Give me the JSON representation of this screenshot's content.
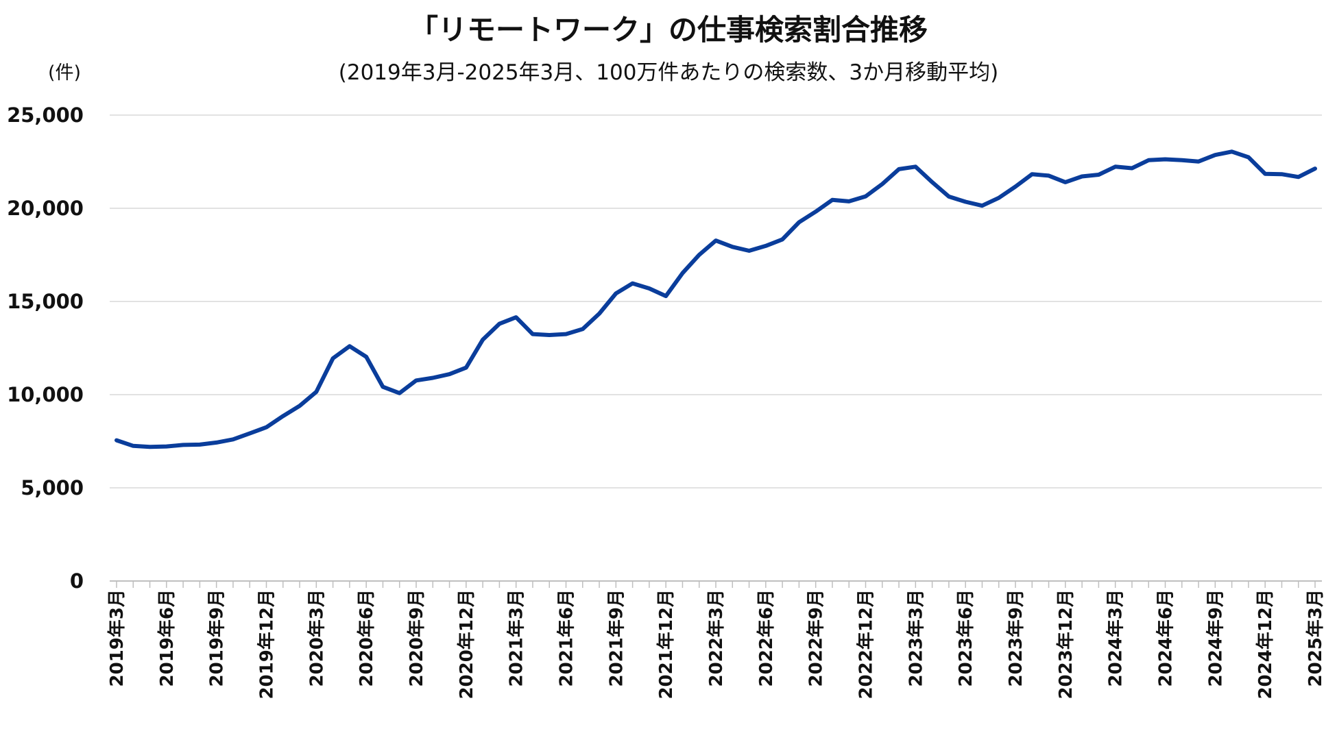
{
  "chart_data": {
    "type": "line",
    "title": "「リモートワーク」の仕事検索割合推移",
    "subtitle": "(2019年3月-2025年3月、100万件あたりの検索数、3か月移動平均)",
    "ylabel": "(件)",
    "xlabel": "",
    "ylim": [
      0,
      25000
    ],
    "yticks": [
      "0",
      "5,000",
      "10,000",
      "15,000",
      "20,000",
      "25,000"
    ],
    "ytick_values": [
      0,
      5000,
      10000,
      15000,
      20000,
      25000
    ],
    "grid": true,
    "legend": "none",
    "line_color": "#0a3d9b",
    "x_tick_labels": [
      "2019年3月",
      "2019年6月",
      "2019年9月",
      "2019年12月",
      "2020年3月",
      "2020年6月",
      "2020年9月",
      "2020年12月",
      "2021年3月",
      "2021年6月",
      "2021年9月",
      "2021年12月",
      "2022年3月",
      "2022年6月",
      "2022年9月",
      "2022年12月",
      "2023年3月",
      "2023年6月",
      "2023年9月",
      "2023年12月",
      "2024年3月",
      "2024年6月",
      "2024年9月",
      "2024年12月",
      "2025年3月"
    ],
    "x": [
      "2019-03",
      "2019-04",
      "2019-05",
      "2019-06",
      "2019-07",
      "2019-08",
      "2019-09",
      "2019-10",
      "2019-11",
      "2019-12",
      "2020-01",
      "2020-02",
      "2020-03",
      "2020-04",
      "2020-05",
      "2020-06",
      "2020-07",
      "2020-08",
      "2020-09",
      "2020-10",
      "2020-11",
      "2020-12",
      "2021-01",
      "2021-02",
      "2021-03",
      "2021-04",
      "2021-05",
      "2021-06",
      "2021-07",
      "2021-08",
      "2021-09",
      "2021-10",
      "2021-11",
      "2021-12",
      "2022-01",
      "2022-02",
      "2022-03",
      "2022-04",
      "2022-05",
      "2022-06",
      "2022-07",
      "2022-08",
      "2022-09",
      "2022-10",
      "2022-11",
      "2022-12",
      "2023-01",
      "2023-02",
      "2023-03",
      "2023-04",
      "2023-05",
      "2023-06",
      "2023-07",
      "2023-08",
      "2023-09",
      "2023-10",
      "2023-11",
      "2023-12",
      "2024-01",
      "2024-02",
      "2024-03",
      "2024-04",
      "2024-05",
      "2024-06",
      "2024-07",
      "2024-08",
      "2024-09",
      "2024-10",
      "2024-11",
      "2024-12",
      "2025-01",
      "2025-02",
      "2025-03"
    ],
    "series": [
      {
        "values": [
          7550,
          7250,
          7200,
          7220,
          7300,
          7320,
          7430,
          7600,
          7920,
          8250,
          8850,
          9400,
          10150,
          11950,
          12600,
          12030,
          10420,
          10080,
          10760,
          10900,
          11100,
          11450,
          12950,
          13800,
          14150,
          13250,
          13200,
          13250,
          13520,
          14350,
          15430,
          15970,
          15700,
          15290,
          16520,
          17500,
          18270,
          17930,
          17720,
          17980,
          18330,
          19250,
          19820,
          20450,
          20370,
          20640,
          21300,
          22100,
          22230,
          21400,
          20630,
          20350,
          20140,
          20560,
          21160,
          21830,
          21750,
          21400,
          21710,
          21800,
          22230,
          22150,
          22580,
          22630,
          22580,
          22510,
          22860,
          23040,
          22740,
          21850,
          21830,
          21680,
          22130
        ]
      }
    ]
  }
}
